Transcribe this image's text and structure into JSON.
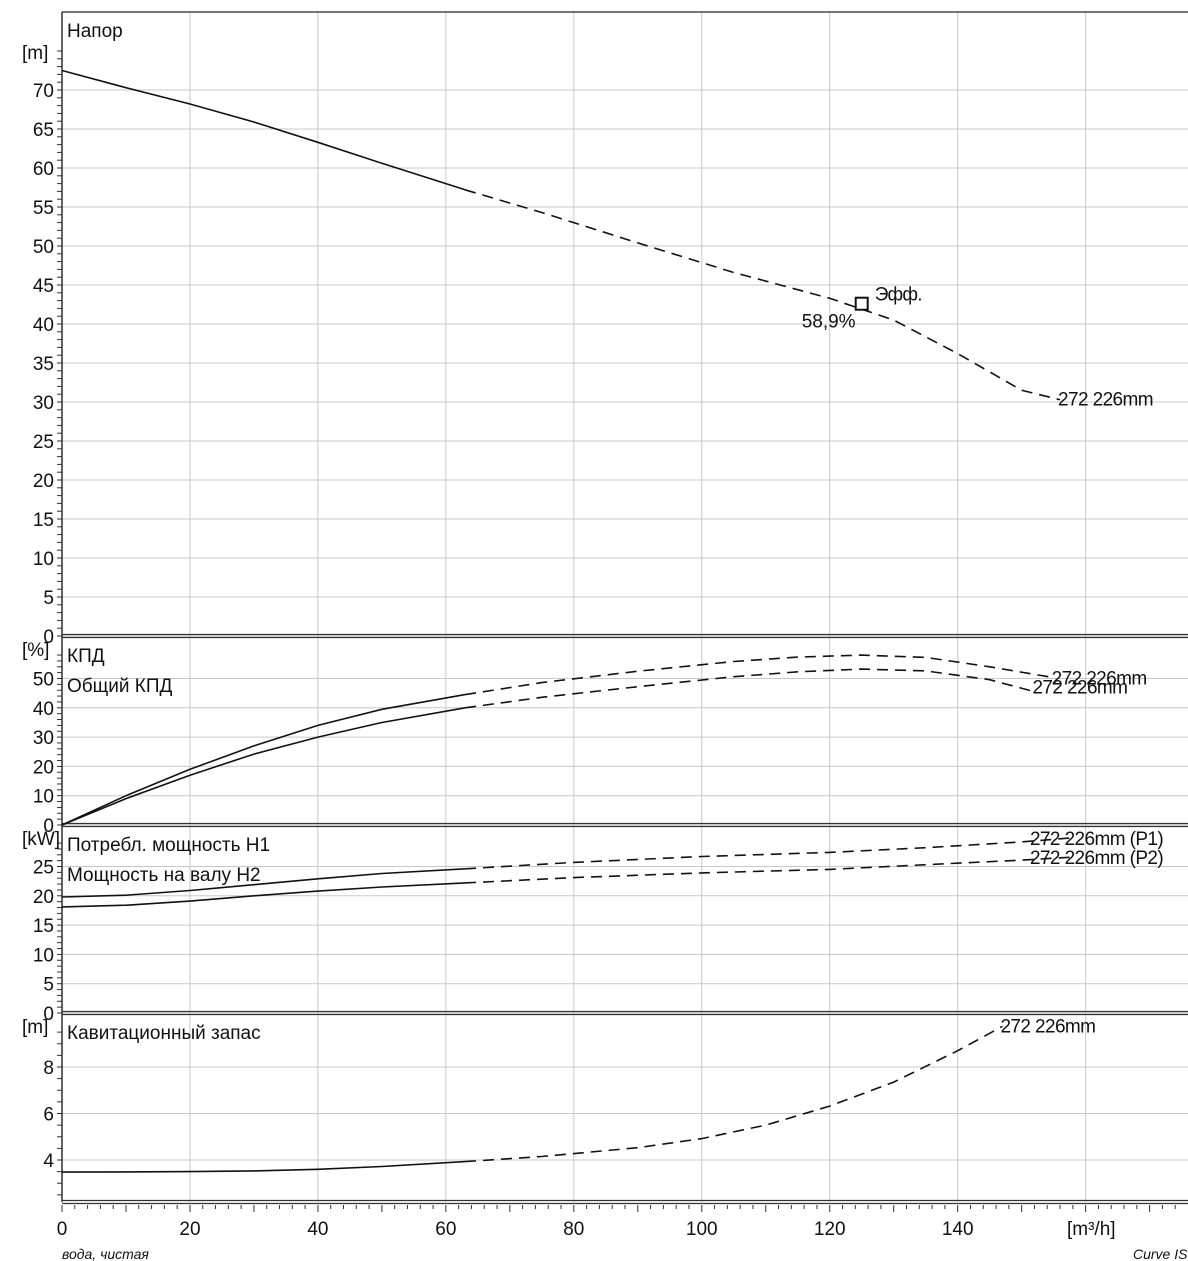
{
  "chart_data": {
    "type": "line",
    "footer_left": "вода, чистая",
    "footer_right": "Curve IS",
    "x_axis": {
      "ticks": [
        "0",
        "20",
        "40",
        "60",
        "80",
        "100",
        "120",
        "140"
      ],
      "unit_label": "[m³/h]",
      "xlim": [
        0,
        176
      ],
      "grid": true
    },
    "panels": [
      {
        "id": "head",
        "title": "Напор",
        "unit": "[m]",
        "ylim": [
          0,
          75
        ],
        "ticks": [
          "0",
          "5",
          "10",
          "15",
          "20",
          "25",
          "30",
          "35",
          "40",
          "45",
          "50",
          "55",
          "60",
          "65",
          "70"
        ],
        "series": [
          {
            "name": "272 226mm",
            "solid": [
              [
                0,
                72.5
              ],
              [
                10,
                70.3
              ],
              [
                20,
                68.2
              ],
              [
                30,
                65.9
              ],
              [
                40,
                63.3
              ],
              [
                50,
                60.6
              ],
              [
                63,
                57.2
              ]
            ],
            "dashed": [
              [
                63,
                57.2
              ],
              [
                75,
                54.3
              ],
              [
                90,
                50.4
              ],
              [
                105,
                46.6
              ],
              [
                120,
                43.3
              ],
              [
                130,
                40.5
              ],
              [
                140,
                36.2
              ],
              [
                150,
                31.5
              ],
              [
                156,
                30.3
              ]
            ]
          }
        ],
        "marker": {
          "x": 125,
          "y": 42.6,
          "label": "Эфф.",
          "value_label": "58,9%"
        }
      },
      {
        "id": "efficiency",
        "titles": [
          "КПД",
          "Общий КПД"
        ],
        "unit": "[%]",
        "ylim": [
          0,
          60
        ],
        "ticks": [
          "0",
          "10",
          "20",
          "30",
          "40",
          "50"
        ],
        "series": [
          {
            "name": "272 226mm",
            "solid": [
              [
                0,
                0
              ],
              [
                10,
                10
              ],
              [
                20,
                19
              ],
              [
                30,
                27
              ],
              [
                40,
                34
              ],
              [
                50,
                39.5
              ],
              [
                63,
                44.5
              ]
            ],
            "dashed": [
              [
                63,
                44.5
              ],
              [
                75,
                48.6
              ],
              [
                90,
                52.5
              ],
              [
                105,
                55.8
              ],
              [
                115,
                57.3
              ],
              [
                125,
                58
              ],
              [
                135,
                57.2
              ],
              [
                145,
                54
              ],
              [
                155,
                50.3
              ]
            ]
          },
          {
            "name": "272 226mm",
            "solid": [
              [
                0,
                0
              ],
              [
                10,
                9
              ],
              [
                20,
                17
              ],
              [
                30,
                24.2
              ],
              [
                40,
                30
              ],
              [
                50,
                35
              ],
              [
                63,
                40
              ]
            ],
            "dashed": [
              [
                63,
                40
              ],
              [
                75,
                43.6
              ],
              [
                90,
                47.2
              ],
              [
                105,
                50.6
              ],
              [
                115,
                52.3
              ],
              [
                125,
                53.2
              ],
              [
                135,
                52.6
              ],
              [
                145,
                49.6
              ],
              [
                152,
                45.5
              ]
            ]
          }
        ]
      },
      {
        "id": "power",
        "titles": [
          "Потребл. мощность H1",
          "Мощность на валу H2"
        ],
        "unit": "[kW]",
        "ylim": [
          0,
          30
        ],
        "ticks": [
          "0",
          "5",
          "10",
          "15",
          "20",
          "25"
        ],
        "series": [
          {
            "name": "272 226mm (P1)",
            "solid": [
              [
                0,
                19.8
              ],
              [
                10,
                20.1
              ],
              [
                20,
                20.9
              ],
              [
                30,
                21.9
              ],
              [
                40,
                22.9
              ],
              [
                50,
                23.8
              ],
              [
                63,
                24.6
              ]
            ],
            "dashed": [
              [
                63,
                24.6
              ],
              [
                80,
                25.7
              ],
              [
                100,
                26.7
              ],
              [
                120,
                27.4
              ],
              [
                135,
                28.2
              ],
              [
                150,
                29.2
              ],
              [
                158,
                29.9
              ]
            ]
          },
          {
            "name": "272 226mm (P2)",
            "solid": [
              [
                0,
                18.1
              ],
              [
                10,
                18.4
              ],
              [
                20,
                19.1
              ],
              [
                30,
                20
              ],
              [
                40,
                20.8
              ],
              [
                50,
                21.5
              ],
              [
                63,
                22.2
              ]
            ],
            "dashed": [
              [
                63,
                22.2
              ],
              [
                80,
                23.1
              ],
              [
                100,
                23.9
              ],
              [
                120,
                24.5
              ],
              [
                135,
                25.3
              ],
              [
                150,
                26.1
              ],
              [
                158,
                26.6
              ]
            ]
          }
        ]
      },
      {
        "id": "npsh",
        "title": "Кавитационный запас",
        "unit": "[m]",
        "ylim": [
          2.2,
          10
        ],
        "ticks": [
          "4",
          "6",
          "8"
        ],
        "series": [
          {
            "name": "272 226mm",
            "solid": [
              [
                0,
                3.48
              ],
              [
                10,
                3.49
              ],
              [
                20,
                3.5
              ],
              [
                30,
                3.53
              ],
              [
                40,
                3.6
              ],
              [
                50,
                3.72
              ],
              [
                63,
                3.93
              ]
            ],
            "dashed": [
              [
                63,
                3.93
              ],
              [
                75,
                4.15
              ],
              [
                90,
                4.53
              ],
              [
                100,
                4.92
              ],
              [
                110,
                5.5
              ],
              [
                120,
                6.32
              ],
              [
                130,
                7.35
              ],
              [
                140,
                8.7
              ],
              [
                147,
                9.75
              ]
            ]
          }
        ]
      }
    ]
  }
}
